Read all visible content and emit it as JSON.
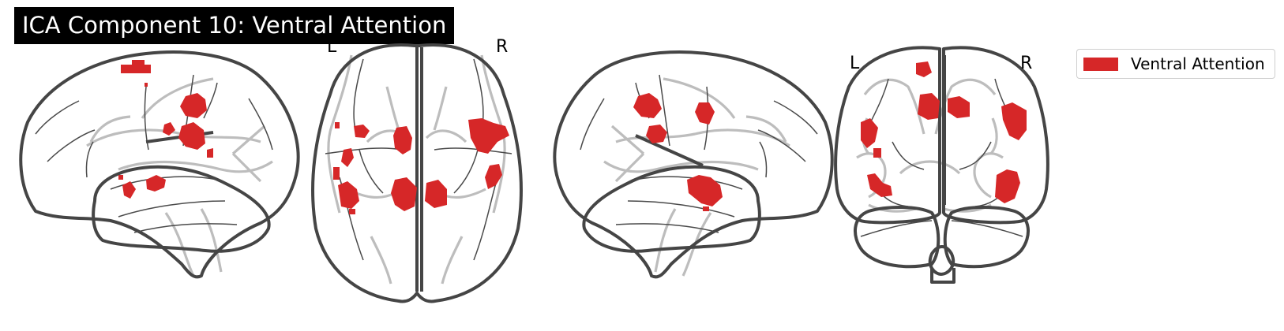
{
  "title": "ICA Component 10: Ventral Attention",
  "views": {
    "axial": {
      "left_label": "L",
      "right_label": "R"
    },
    "coronal": {
      "left_label": "L",
      "right_label": "R"
    }
  },
  "legend": {
    "label": "Ventral Attention",
    "color": "#d62728"
  },
  "colors": {
    "activation": "#d62728",
    "outline": "#454545",
    "ghost": "#bdbdbd"
  }
}
